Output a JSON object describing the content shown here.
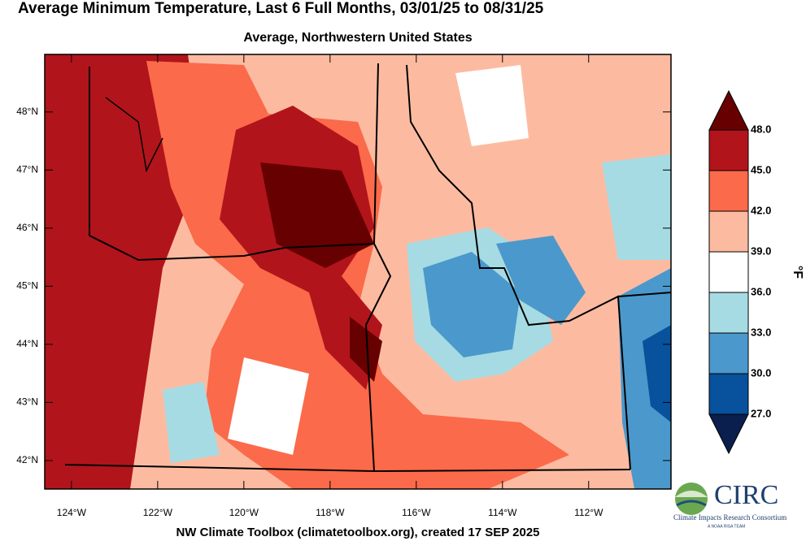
{
  "title": "Average Minimum Temperature, Last 6 Full Months, 03/01/25 to 08/31/25",
  "subtitle": "Average, Northwestern United States",
  "map": {
    "xlim": [
      -124.62,
      -110.09
    ],
    "ylim": [
      41.51,
      48.99
    ],
    "xticks": [
      {
        "value": -124,
        "label": "124°W"
      },
      {
        "value": -122,
        "label": "122°W"
      },
      {
        "value": -120,
        "label": "120°W"
      },
      {
        "value": -118,
        "label": "118°W"
      },
      {
        "value": -116,
        "label": "116°W"
      },
      {
        "value": -114,
        "label": "114°W"
      },
      {
        "value": -112,
        "label": "112°W"
      }
    ],
    "yticks": [
      {
        "value": 42,
        "label": "42°N"
      },
      {
        "value": 43,
        "label": "43°N"
      },
      {
        "value": 44,
        "label": "44°N"
      },
      {
        "value": 45,
        "label": "45°N"
      },
      {
        "value": 46,
        "label": "46°N"
      },
      {
        "value": 47,
        "label": "47°N"
      },
      {
        "value": 48,
        "label": "48°N"
      }
    ]
  },
  "colorbar": {
    "unit": "°F",
    "ticks": [
      {
        "value": 27,
        "label": "27.0"
      },
      {
        "value": 30,
        "label": "30.0"
      },
      {
        "value": 33,
        "label": "33.0"
      },
      {
        "value": 36,
        "label": "36.0"
      },
      {
        "value": 39,
        "label": "39.0"
      },
      {
        "value": 42,
        "label": "42.0"
      },
      {
        "value": 45,
        "label": "45.0"
      },
      {
        "value": 48,
        "label": "48.0"
      }
    ],
    "colors": [
      "#0a1f4d",
      "#08519c",
      "#4b98cc",
      "#a6dbe3",
      "#ffffff",
      "#fcbba1",
      "#fb6a4a",
      "#b2141b",
      "#670000"
    ]
  },
  "footer": "NW Climate Toolbox (climatetoolbox.org), created 17 SEP 2025",
  "logo": {
    "name": "CIRC",
    "full_name": "Climate Impacts Research Consortium",
    "tagline": "A NOAA RISA TEAM"
  }
}
